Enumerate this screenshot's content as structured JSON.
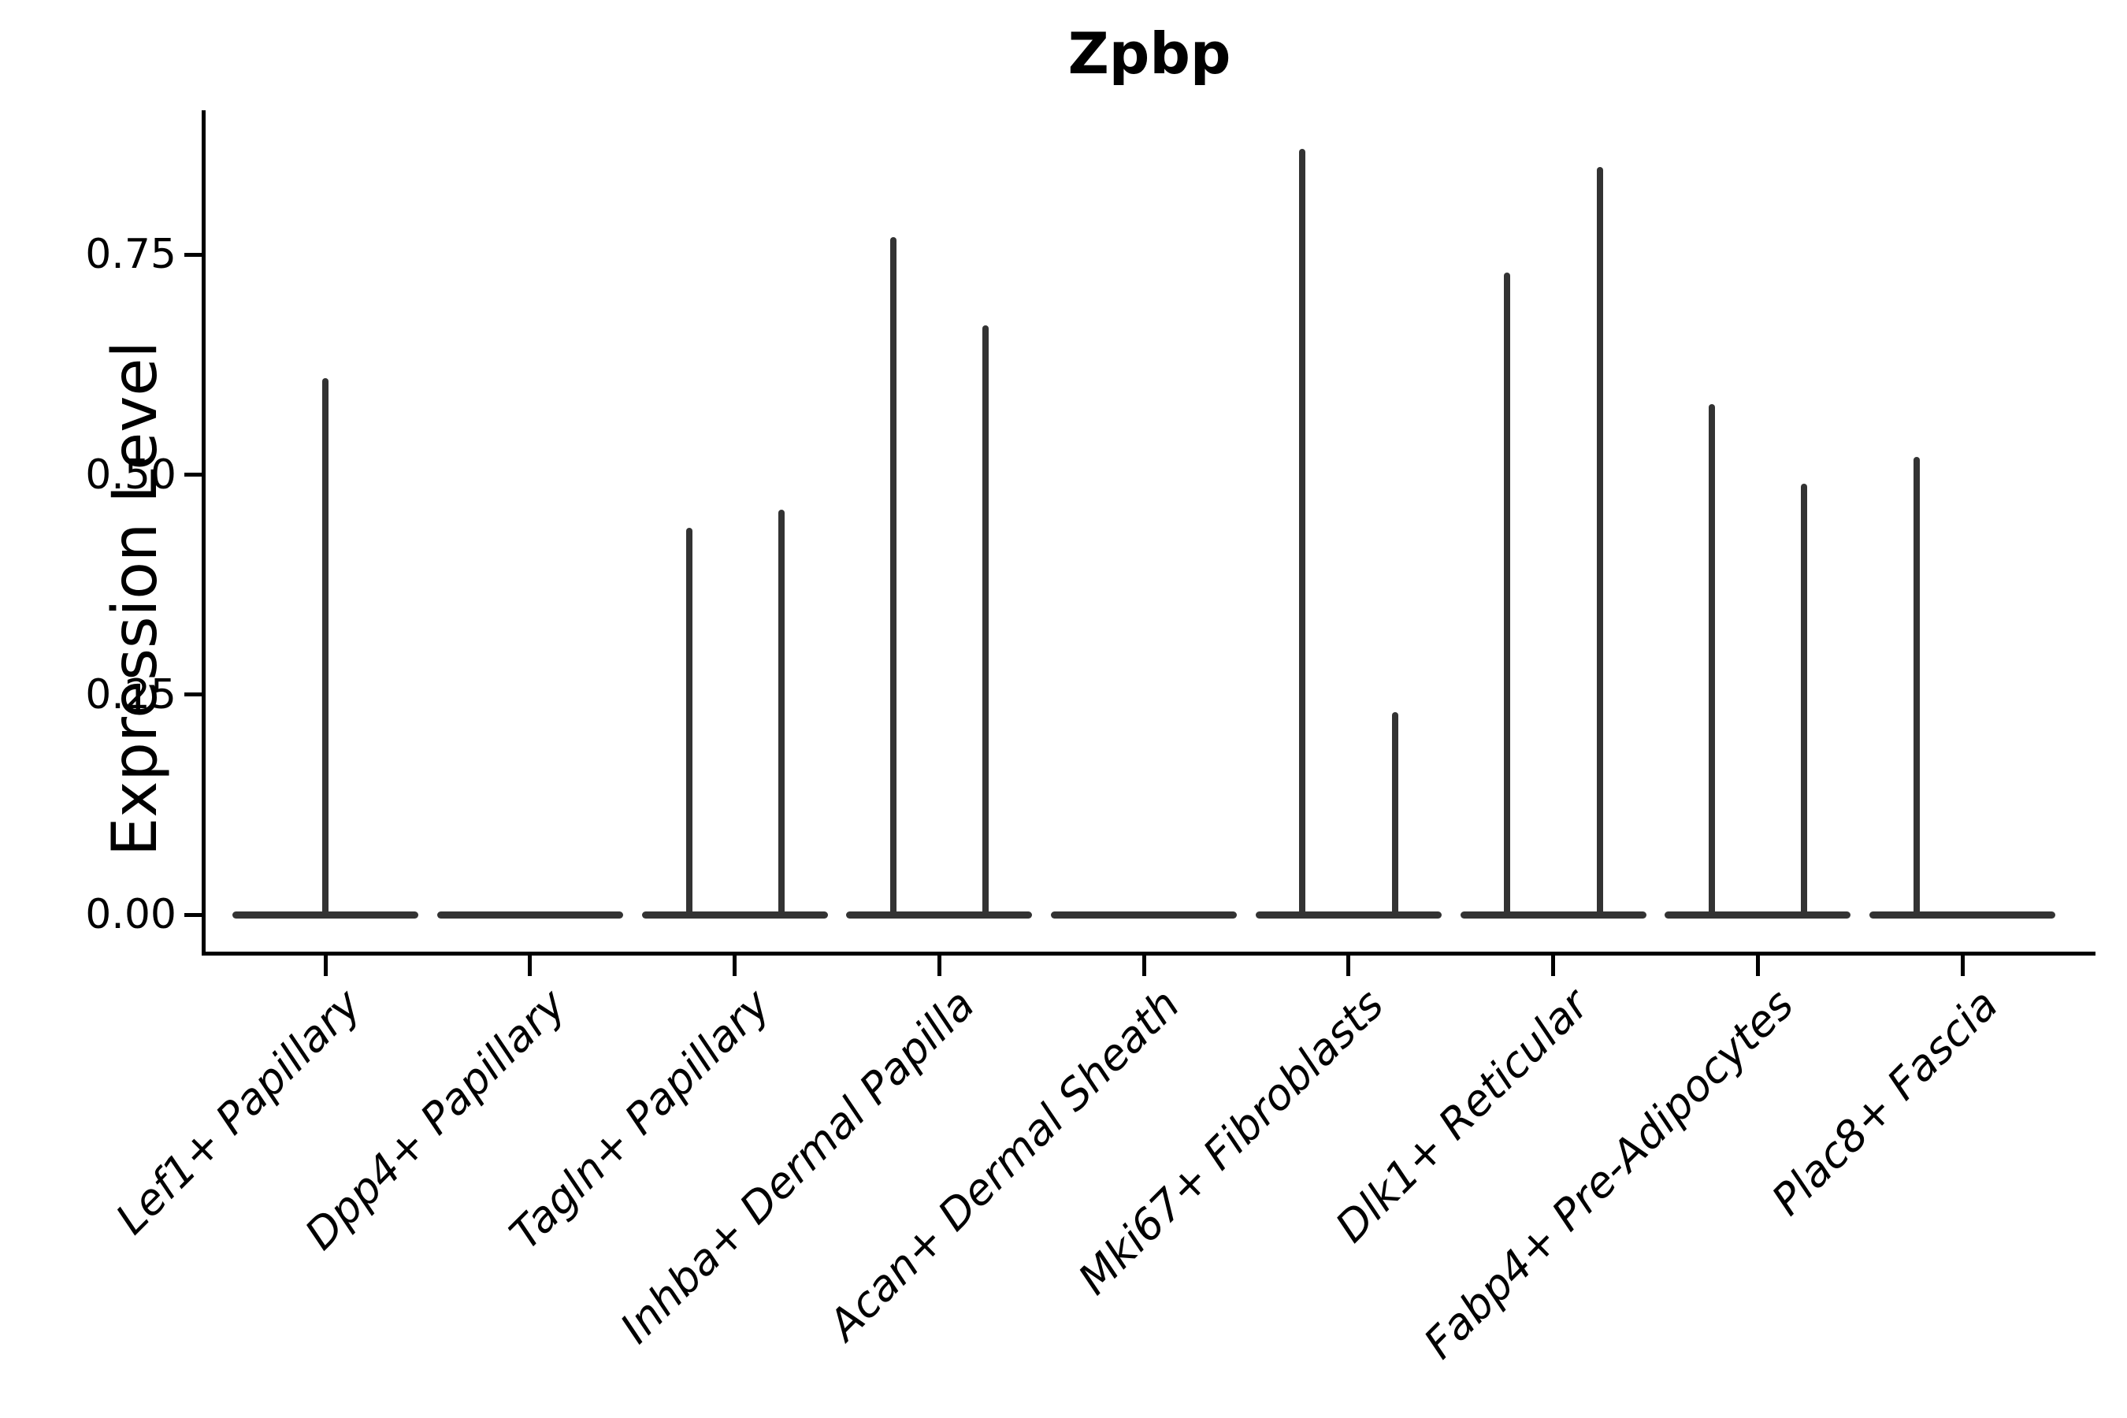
{
  "chart_data": {
    "type": "violin",
    "title": "Zpbp",
    "xlabel": "",
    "ylabel": "Expression Level",
    "ylim": [
      0,
      0.915
    ],
    "grid": false,
    "legend": "none",
    "yticks": [
      {
        "value": 0.0,
        "label": "0.00"
      },
      {
        "value": 0.25,
        "label": "0.25"
      },
      {
        "value": 0.5,
        "label": "0.50"
      },
      {
        "value": 0.75,
        "label": "0.75"
      }
    ],
    "categories": [
      "Lef1+ Papillary",
      "Dpp4+ Papillary",
      "Tagln+ Papillary",
      "Inhba+ Dermal Papilla",
      "Acan+ Dermal Sheath",
      "Mki67+ Fibroblasts",
      "Dlk1+ Reticular",
      "Fabp4+ Pre-Adipocytes",
      "Plac8+ Fascia"
    ],
    "series": [
      {
        "category": "Lef1+ Papillary",
        "baseline": 0,
        "spikes": [
          {
            "dx": 0,
            "value": 0.61
          }
        ]
      },
      {
        "category": "Dpp4+ Papillary",
        "baseline": 0,
        "spikes": []
      },
      {
        "category": "Tagln+ Papillary",
        "baseline": 0,
        "spikes": [
          {
            "dx": -58,
            "value": 0.44
          },
          {
            "dx": 59,
            "value": 0.46
          }
        ]
      },
      {
        "category": "Inhba+ Dermal Papilla",
        "baseline": 0,
        "spikes": [
          {
            "dx": -58,
            "value": 0.77
          },
          {
            "dx": 59,
            "value": 0.67
          }
        ]
      },
      {
        "category": "Acan+ Dermal Sheath",
        "baseline": 0,
        "spikes": []
      },
      {
        "category": "Mki67+ Fibroblasts",
        "baseline": 0,
        "spikes": [
          {
            "dx": -59,
            "value": 0.87
          },
          {
            "dx": 59,
            "value": 0.23
          }
        ]
      },
      {
        "category": "Dlk1+ Reticular",
        "baseline": 0,
        "spikes": [
          {
            "dx": -59,
            "value": 0.73
          },
          {
            "dx": 59,
            "value": 0.85
          }
        ]
      },
      {
        "category": "Fabp4+ Pre-Adipocytes",
        "baseline": 0,
        "spikes": [
          {
            "dx": -58,
            "value": 0.58
          },
          {
            "dx": 59,
            "value": 0.49
          }
        ]
      },
      {
        "category": "Plac8+ Fascia",
        "baseline": 0,
        "spikes": [
          {
            "dx": -58,
            "value": 0.52
          }
        ]
      }
    ],
    "colors": {
      "violin": "#333333",
      "axis": "#000000",
      "background": "#ffffff"
    }
  }
}
